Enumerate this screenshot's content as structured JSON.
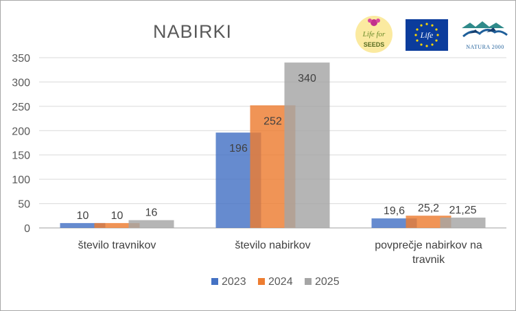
{
  "chart_data": {
    "type": "bar",
    "title": "NABIRKI",
    "categories": [
      "število travnikov",
      "število nabirkov",
      "povprečje nabirkov na travnik"
    ],
    "series": [
      {
        "name": "2023",
        "values": [
          10,
          196,
          19.6
        ],
        "labels": [
          "10",
          "196",
          "19,6"
        ],
        "color": "#4472c4"
      },
      {
        "name": "2024",
        "values": [
          10,
          252,
          25.2
        ],
        "labels": [
          "10",
          "252",
          "25,2"
        ],
        "color": "#ed7d31"
      },
      {
        "name": "2025",
        "values": [
          16,
          340,
          21.25
        ],
        "labels": [
          "16",
          "340",
          "21,25"
        ],
        "color": "#a5a5a5"
      }
    ],
    "ylim": [
      0,
      350
    ],
    "yticks": [
      "0",
      "50",
      "100",
      "150",
      "200",
      "250",
      "300",
      "350"
    ],
    "grid": true,
    "legend": "bottom"
  },
  "logos": {
    "life_for_seeds": {
      "text_top": "Life for",
      "text_bottom": "SEEDS"
    },
    "eu_life": {
      "text": "Life"
    },
    "natura_2000": {
      "text": "NATURA 2000"
    }
  }
}
